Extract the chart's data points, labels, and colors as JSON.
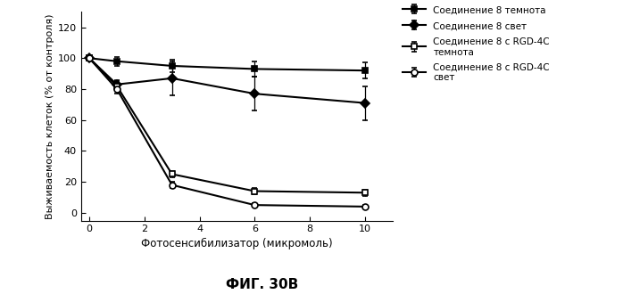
{
  "x": [
    0,
    1,
    3,
    6,
    10
  ],
  "series": [
    {
      "label": "Соединение 8 темнота",
      "y": [
        100,
        98,
        95,
        93,
        92
      ],
      "yerr": [
        1,
        3,
        4,
        5,
        5
      ],
      "marker": "s",
      "fillstyle": "full",
      "linewidth": 1.5
    },
    {
      "label": "Соединение 8 свет",
      "y": [
        100,
        83,
        87,
        77,
        71
      ],
      "yerr": [
        1,
        3,
        11,
        11,
        11
      ],
      "marker": "D",
      "fillstyle": "full",
      "linewidth": 1.5
    },
    {
      "label": "Соединение 8 с RGD-4C\nтемнота",
      "y": [
        100,
        82,
        25,
        14,
        13
      ],
      "yerr": [
        1,
        3,
        2,
        2,
        2
      ],
      "marker": "s",
      "fillstyle": "none",
      "linewidth": 1.5
    },
    {
      "label": "Соединение 8 с RGD-4C\nсвет",
      "y": [
        100,
        80,
        18,
        5,
        4
      ],
      "yerr": [
        1,
        3,
        2,
        1,
        1
      ],
      "marker": "o",
      "fillstyle": "none",
      "linewidth": 1.5
    }
  ],
  "xlabel": "Фотосенсибилизатор (микромоль)",
  "ylabel": "Выживаемость клеток (% от контроля)",
  "title": "ФИГ. 30B",
  "xlim": [
    -0.3,
    11
  ],
  "ylim": [
    -5,
    130
  ],
  "xticks": [
    0,
    2,
    4,
    6,
    8,
    10
  ],
  "yticks": [
    0,
    20,
    40,
    60,
    80,
    100,
    120
  ],
  "legend_labels": [
    "Соединение 8 темнота",
    "Соединение 8 свет",
    "Соединение 8 с RGD-4C\nтемнота",
    "Соединение 8 с RGD-4C\nсвет"
  ],
  "background_color": "#ffffff"
}
